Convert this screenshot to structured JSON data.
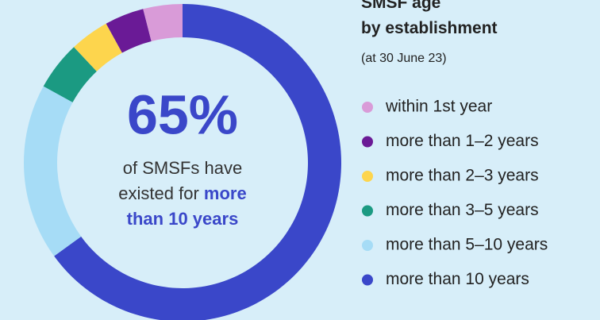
{
  "chart_data": {
    "type": "pie",
    "title": "SMSF age by establishment",
    "subtitle": "(at 30 June 23)",
    "center_text": [
      "of SMSFs have existed for ",
      "more than 10 years"
    ],
    "categories": [
      "within 1st year",
      "more than 1–2 years",
      "more than 2–3 years",
      "more than 3–5 years",
      "more than 5–10 years",
      "more than 10 years"
    ],
    "values": [
      4,
      4,
      4,
      5,
      18,
      65
    ],
    "value_labels": [
      null,
      null,
      null,
      null,
      null,
      "65%"
    ],
    "colors": [
      "#d99bd8",
      "#6a1a96",
      "#fdd54d",
      "#1b9a82",
      "#a6dcf6",
      "#3a47c9"
    ],
    "start": "top",
    "direction": "counterclockwise-in-legend-order",
    "legend": "right"
  }
}
